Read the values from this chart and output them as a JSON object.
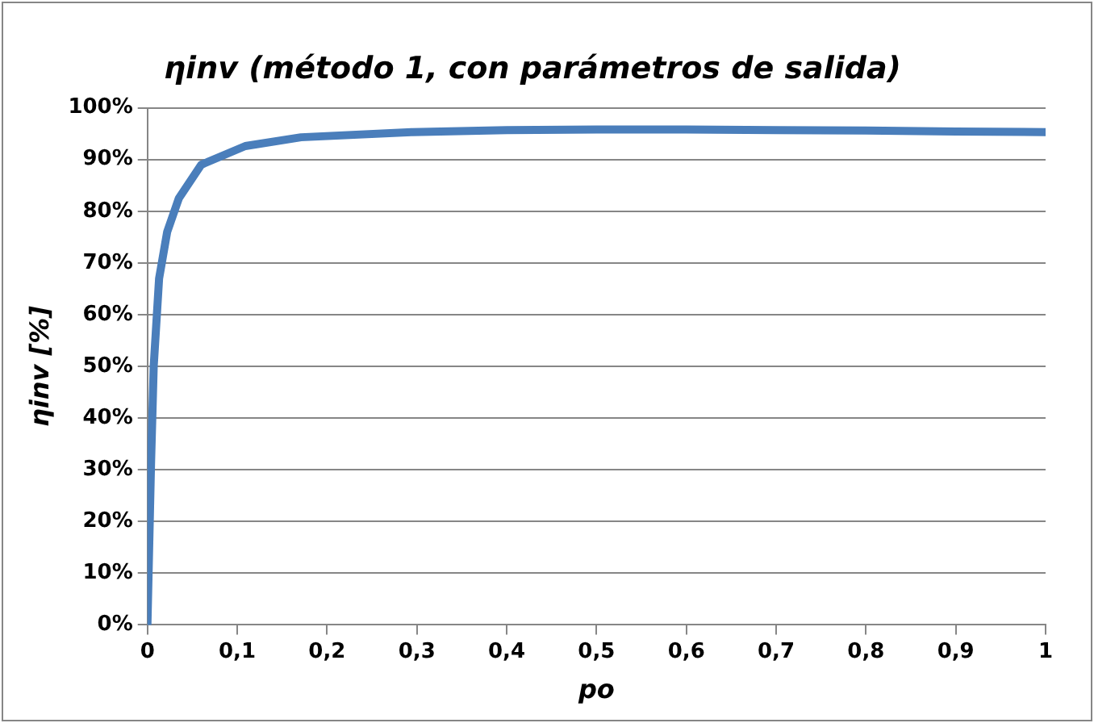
{
  "chart_data": {
    "type": "line",
    "title": "ηinv (método 1, con parámetros de salida)",
    "xlabel": "po",
    "ylabel": "ηinv [%]",
    "series": [
      {
        "color": "#4a7ebb",
        "x": [
          0,
          0.004,
          0.007,
          0.013,
          0.022,
          0.035,
          0.06,
          0.109,
          0.171,
          0.295,
          0.4,
          0.5,
          0.6,
          0.7,
          0.8,
          0.9,
          1
        ],
        "values": [
          0,
          31,
          50,
          67,
          76,
          82.5,
          89,
          92.6,
          94.3,
          95.3,
          95.7,
          95.8,
          95.8,
          95.7,
          95.6,
          95.4,
          95.3
        ]
      }
    ],
    "xlim": [
      0,
      1
    ],
    "ylim": [
      0,
      100
    ],
    "xticks": [
      0,
      {
        "value": 0.1,
        "label": "0,1"
      },
      {
        "value": 0.2,
        "label": "0,2"
      },
      {
        "value": 0.3,
        "label": "0,3"
      },
      {
        "value": 0.4,
        "label": "0,4"
      },
      {
        "value": 0.5,
        "label": "0,5"
      },
      {
        "value": 0.6,
        "label": "0,6"
      },
      {
        "value": 0.7,
        "label": "0,7"
      },
      {
        "value": 0.8,
        "label": "0,8"
      },
      {
        "value": 0.9,
        "label": "0,9"
      },
      1
    ],
    "yticks": [
      {
        "value": 0,
        "label": "0%"
      },
      {
        "value": 10,
        "label": "10%"
      },
      {
        "value": 20,
        "label": "20%"
      },
      {
        "value": 30,
        "label": "30%"
      },
      {
        "value": 40,
        "label": "40%"
      },
      {
        "value": 50,
        "label": "50%"
      },
      {
        "value": 60,
        "label": "60%"
      },
      {
        "value": 70,
        "label": "70%"
      },
      {
        "value": 80,
        "label": "80%"
      },
      {
        "value": 90,
        "label": "90%"
      },
      {
        "value": 100,
        "label": "100%"
      }
    ],
    "grid": "y",
    "legend": false,
    "marker": "none",
    "line_style": "solid"
  }
}
